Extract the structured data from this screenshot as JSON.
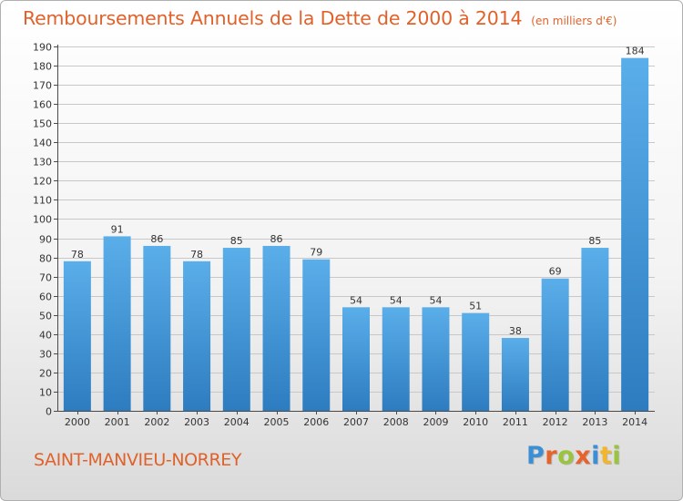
{
  "title": "Remboursements Annuels de la Dette de 2000 à 2014",
  "unit": "(en milliers d'€)",
  "city": "SAINT-MANVIEU-NORREY",
  "logo": {
    "text": "Proxiti",
    "letter_colors": [
      "#3b8fd4",
      "#e8622c",
      "#9ac43c",
      "#e8622c",
      "#3b8fd4",
      "#f2b52d",
      "#9ac43c"
    ]
  },
  "colors": {
    "title": "#e0622a",
    "bar_top": "#5aaee9",
    "bar_bottom": "#2d7cc0",
    "grid": "#c8c8c8",
    "axis": "#4a4a4a",
    "text": "#333333"
  },
  "chart_data": {
    "type": "bar",
    "categories": [
      "2000",
      "2001",
      "2002",
      "2003",
      "2004",
      "2005",
      "2006",
      "2007",
      "2008",
      "2009",
      "2010",
      "2011",
      "2012",
      "2013",
      "2014"
    ],
    "values": [
      78,
      91,
      86,
      78,
      85,
      86,
      79,
      54,
      54,
      54,
      51,
      38,
      69,
      85,
      184
    ],
    "ylim": [
      0,
      190
    ],
    "yticks": [
      0,
      10,
      20,
      30,
      40,
      50,
      60,
      70,
      80,
      90,
      100,
      110,
      120,
      130,
      140,
      150,
      160,
      170,
      180,
      190
    ],
    "grid": true,
    "data_labels": true
  }
}
